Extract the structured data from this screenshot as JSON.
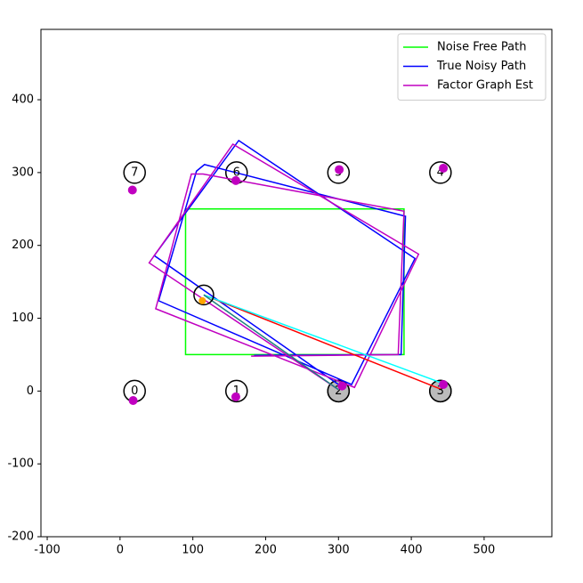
{
  "chart_data": {
    "type": "line",
    "xlim": [
      -108.6,
      593
    ],
    "ylim": [
      -200,
      496.6
    ],
    "xticks": [
      -100,
      0,
      100,
      200,
      300,
      400,
      500
    ],
    "yticks": [
      -200,
      -100,
      0,
      100,
      200,
      300,
      400
    ],
    "grid": false,
    "legend": "upper right",
    "series": [
      {
        "name": "Noise Free Path",
        "color": "#00ff00",
        "x": [
          180,
          90,
          90,
          390,
          390,
          180
        ],
        "y": [
          50,
          50,
          250,
          250,
          50,
          50
        ]
      },
      {
        "name": "True Noisy Path",
        "color": "#0000ff",
        "x": [
          184,
          386,
          392,
          116,
          105,
          53,
          318,
          405,
          163,
          47,
          300
        ],
        "y": [
          49,
          50,
          240,
          311,
          302,
          124,
          9,
          182,
          344,
          186,
          9
        ]
      },
      {
        "name": "Factor Graph Est",
        "color": "#c000c0",
        "x": [
          180,
          382,
          390,
          114,
          98,
          49,
          322,
          410,
          155,
          40,
          300
        ],
        "y": [
          48,
          50,
          247,
          298,
          298,
          113,
          5,
          188,
          339,
          176,
          2
        ]
      }
    ],
    "observed_landmarks": {
      "color": "#bbbbbb",
      "x": [
        300,
        440
      ],
      "y": [
        0,
        0
      ]
    },
    "landmarks": {
      "color": "#ffffff",
      "x": [
        20,
        160,
        300,
        440,
        440,
        300,
        160,
        20
      ],
      "y": [
        0,
        0,
        0,
        0,
        300,
        300,
        300,
        300
      ],
      "labels": [
        "0",
        "1",
        "2",
        "3",
        "4",
        "5",
        "6",
        "7"
      ]
    },
    "measurements": [
      {
        "color": "#ff0000",
        "x": [
          115,
          442
        ],
        "y": [
          132,
          2
        ]
      },
      {
        "color": "#00ffff",
        "x": [
          115,
          442
        ],
        "y": [
          132,
          11
        ]
      },
      {
        "color": "#208080",
        "x": [
          115,
          300
        ],
        "y": [
          132,
          2
        ]
      }
    ],
    "landmark_estimates": {
      "color": "#c000c0",
      "x": [
        18,
        159,
        305,
        444,
        444,
        301,
        159,
        17
      ],
      "y": [
        -13,
        -8,
        7,
        9,
        306,
        304,
        289,
        276
      ]
    },
    "robot": {
      "color": "none",
      "x": 115,
      "y": 132
    },
    "robot_estimate": {
      "color": "#ffa500",
      "x": 113,
      "y": 124
    }
  }
}
